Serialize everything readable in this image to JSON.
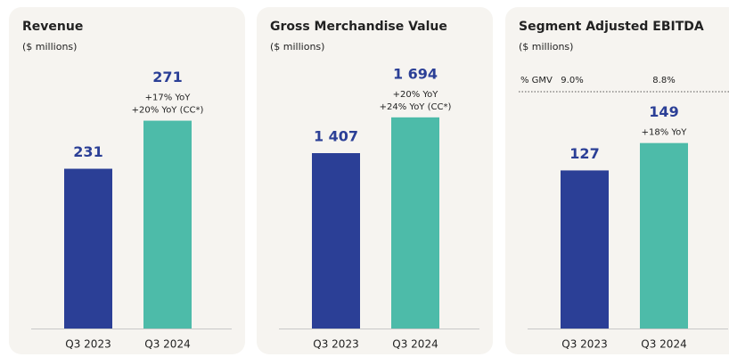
{
  "chart_data": [
    {
      "type": "bar",
      "title": "Revenue",
      "subtitle": "($ millions)",
      "categories": [
        "Q3 2023",
        "Q3 2024"
      ],
      "values": [
        231,
        271
      ],
      "annotations": [
        [],
        [
          "+17% YoY",
          "+20% YoY (CC*)"
        ]
      ],
      "colors": [
        "#2b3f96",
        "#4dbba9"
      ],
      "ylim": [
        98,
        327
      ]
    },
    {
      "type": "bar",
      "title": "Gross Merchandise Value",
      "subtitle": "($ millions)",
      "categories": [
        "Q3 2023",
        "Q3 2024"
      ],
      "values": [
        1407,
        1694
      ],
      "value_labels": [
        "1 407",
        "1 694"
      ],
      "annotations": [
        [],
        [
          "+20% YoY",
          "+24% YoY (CC*)"
        ]
      ],
      "colors": [
        "#2b3f96",
        "#4dbba9"
      ],
      "ylim": [
        0,
        2207
      ]
    },
    {
      "type": "bar",
      "title": "Segment Adjusted EBITDA",
      "subtitle": "($ millions)",
      "categories": [
        "Q3 2023",
        "Q3 2024"
      ],
      "values": [
        127,
        149
      ],
      "annotations": [
        [],
        [
          "+18% YoY"
        ]
      ],
      "ratio": {
        "label": "% GMV",
        "values": [
          9.0,
          8.8
        ],
        "value_labels": [
          "9.0%",
          "8.8%"
        ]
      },
      "colors": [
        "#2b3f96",
        "#4dbba9"
      ],
      "ylim": [
        0,
        221
      ]
    }
  ]
}
